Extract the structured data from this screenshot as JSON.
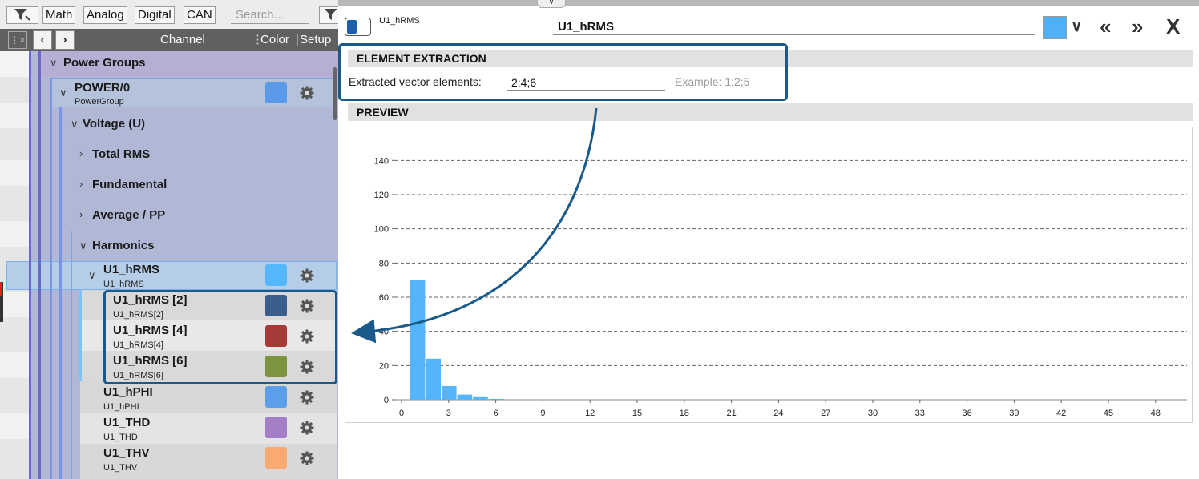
{
  "toolbar": {
    "math_label": "Math",
    "analog_label": "Analog",
    "digital_label": "Digital",
    "can_label": "CAN",
    "search_placeholder": "Search..."
  },
  "header": {
    "channel_label": "Channel",
    "color_label": "Color",
    "setup_label": "Setup"
  },
  "tree": {
    "power_groups": "Power Groups",
    "power0": {
      "label": "POWER/0",
      "sub": "PowerGroup",
      "color": "#5a9ae8"
    },
    "voltage": "Voltage (U)",
    "total_rms": "Total RMS",
    "fundamental": "Fundamental",
    "average_pp": "Average / PP",
    "harmonics": "Harmonics",
    "u1_hrms": {
      "label": "U1_hRMS",
      "sub": "U1_hRMS",
      "color": "#55b7fb"
    },
    "children": [
      {
        "label": "U1_hRMS [2]",
        "sub": "U1_hRMS[2]",
        "color": "#3a5f8f"
      },
      {
        "label": "U1_hRMS [4]",
        "sub": "U1_hRMS[4]",
        "color": "#a53a36"
      },
      {
        "label": "U1_hRMS [6]",
        "sub": "U1_hRMS[6]",
        "color": "#7a953e"
      }
    ],
    "others": [
      {
        "label": "U1_hPHI",
        "sub": "U1_hPHI",
        "color": "#5b9ee9"
      },
      {
        "label": "U1_THD",
        "sub": "U1_THD",
        "color": "#a37fc7"
      },
      {
        "label": "U1_THV",
        "sub": "U1_THV",
        "color": "#f8aa70"
      }
    ]
  },
  "detail": {
    "small_title": "U1_hRMS",
    "name_value": "U1_hRMS",
    "color": "#4fb0f8",
    "extraction_header": "ELEMENT EXTRACTION",
    "extracted_label": "Extracted vector elements:",
    "extracted_value": "2;4;6",
    "example": "Example: 1;2;5",
    "preview_header": "PREVIEW",
    "close_label": "X"
  },
  "chart_data": {
    "type": "bar",
    "color": "#55b5fb",
    "x": [
      1,
      2,
      3,
      4,
      5,
      6
    ],
    "values": [
      70,
      24,
      8,
      3,
      1.5,
      0.5
    ],
    "ylim": [
      0,
      150
    ],
    "yticks": [
      "0",
      "20",
      "40",
      "60",
      "80",
      "100",
      "120",
      "140"
    ],
    "xticks": [
      "0",
      "3",
      "6",
      "9",
      "12",
      "15",
      "18",
      "21",
      "24",
      "27",
      "30",
      "33",
      "36",
      "39",
      "42",
      "45",
      "48"
    ],
    "xlim": [
      0,
      50
    ],
    "grid": true
  }
}
